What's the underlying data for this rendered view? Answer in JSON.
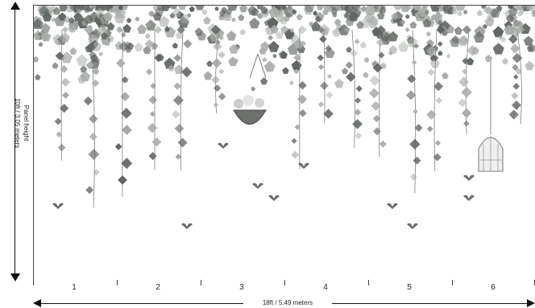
{
  "dimensions": {
    "height_label_line1": "Panel height",
    "height_label_line2": "10ft / 3,05 meters",
    "width_label": "18ft / 5.49 meters"
  },
  "panels": [
    "1",
    "2",
    "3",
    "4",
    "5",
    "6"
  ],
  "mural": {
    "description_icons": [
      "ivy-leaves",
      "hanging-basket",
      "birdcage",
      "flying-birds"
    ],
    "colors": {
      "leaf_dark": "#5f6460",
      "leaf_light": "#a9ada9",
      "vine": "#7b7f7b",
      "background": "#ffffff"
    }
  }
}
